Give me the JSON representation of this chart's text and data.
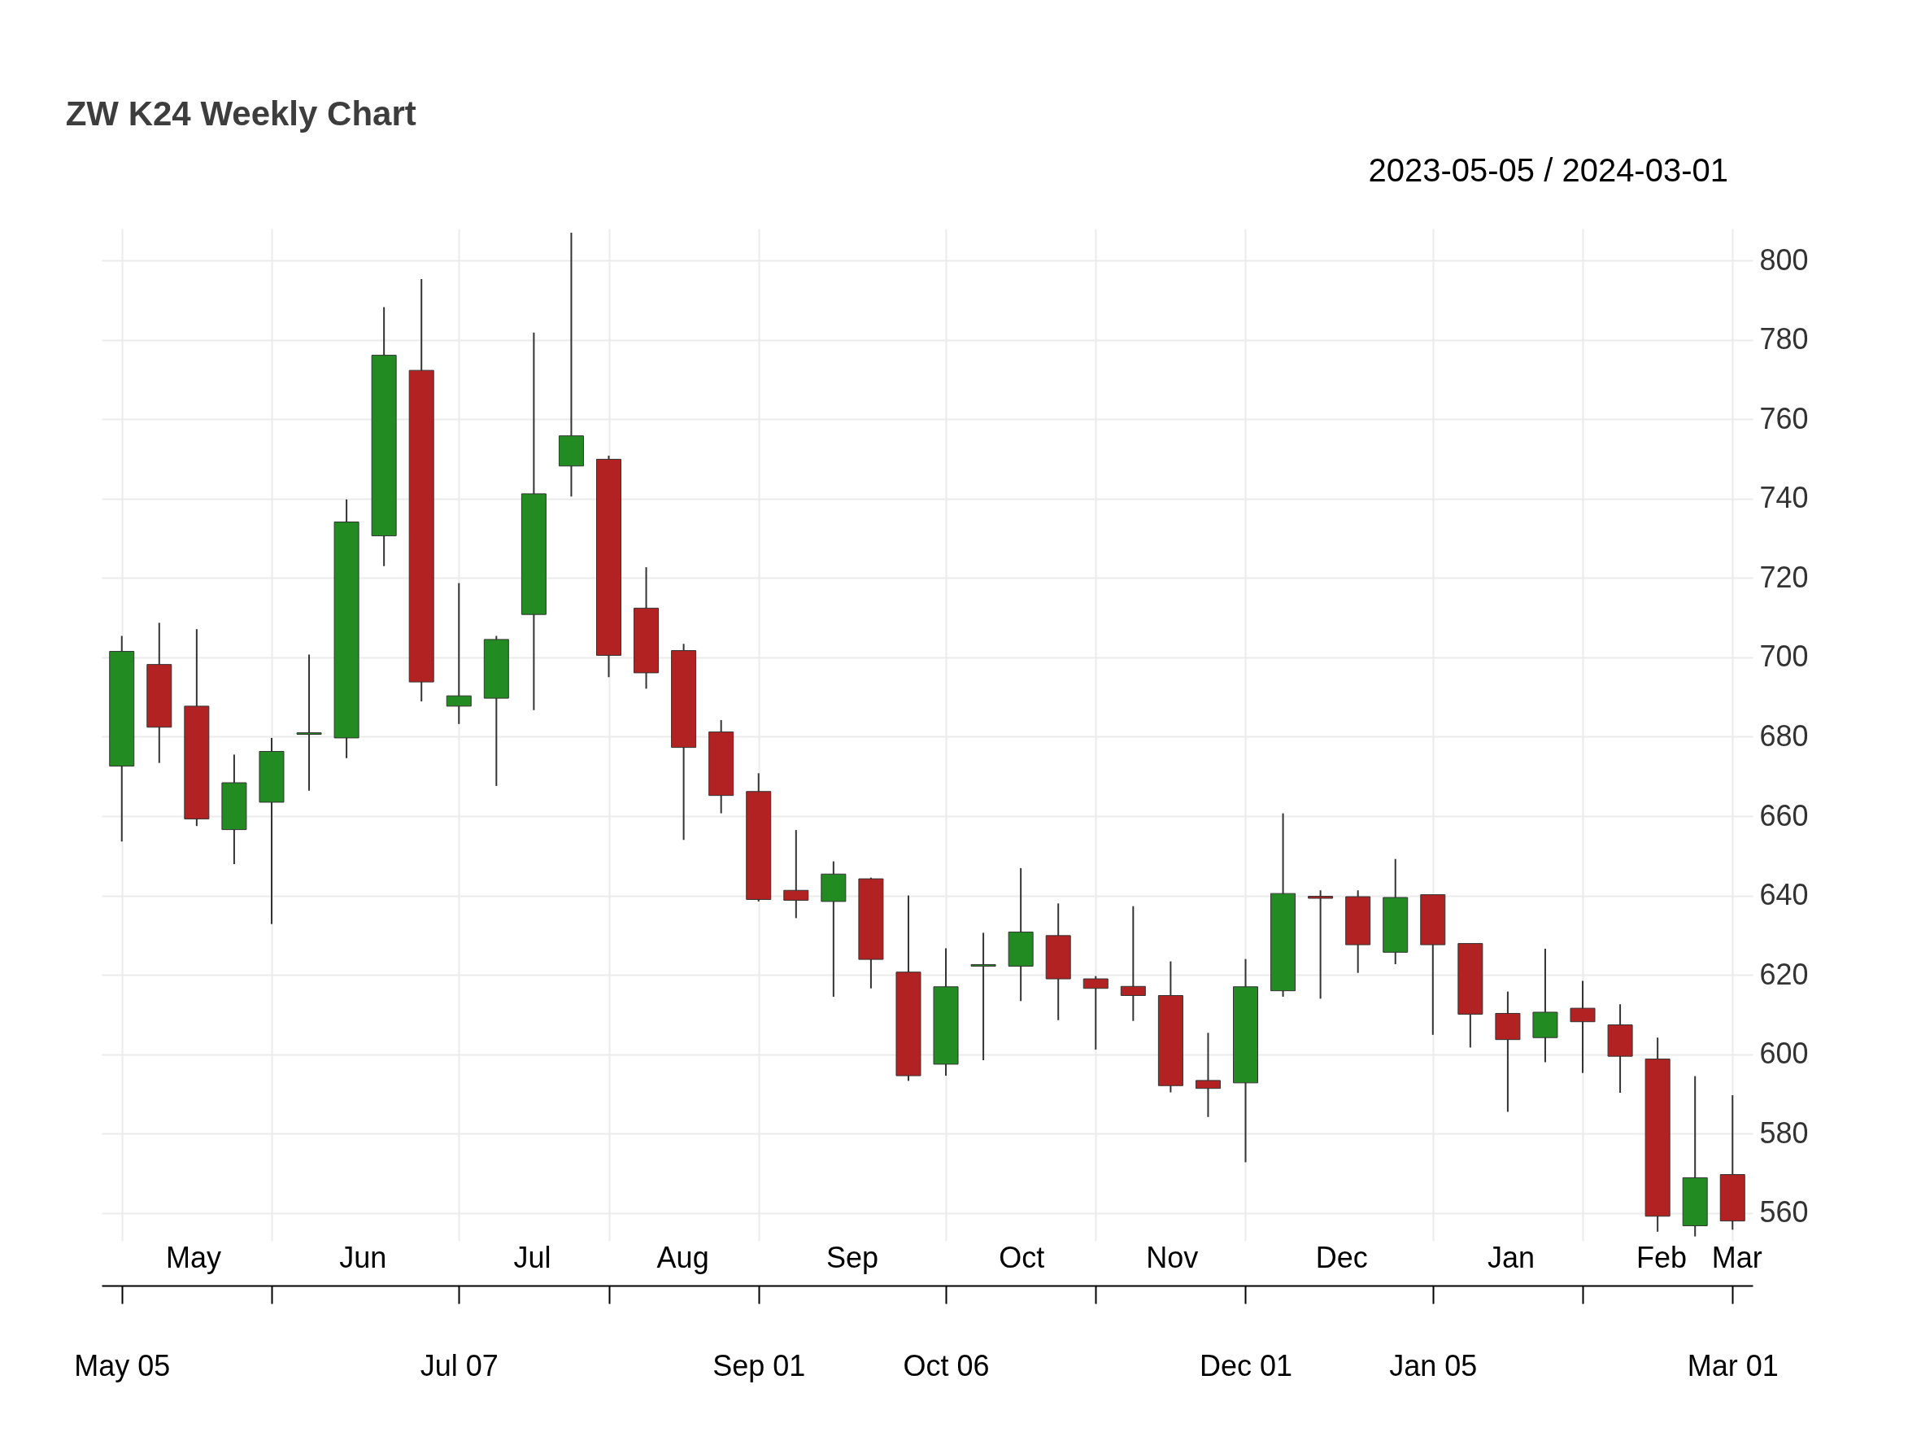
{
  "chart_data": {
    "type": "candlestick",
    "title": "ZW K24 Weekly Chart",
    "subtitle": "2023-05-05 / 2024-03-01",
    "x": [
      "2023-05-05",
      "2023-05-12",
      "2023-05-19",
      "2023-05-26",
      "2023-06-02",
      "2023-06-09",
      "2023-06-16",
      "2023-06-23",
      "2023-06-30",
      "2023-07-07",
      "2023-07-14",
      "2023-07-21",
      "2023-07-28",
      "2023-08-04",
      "2023-08-11",
      "2023-08-18",
      "2023-08-25",
      "2023-09-01",
      "2023-09-08",
      "2023-09-15",
      "2023-09-22",
      "2023-09-29",
      "2023-10-06",
      "2023-10-13",
      "2023-10-20",
      "2023-10-27",
      "2023-11-03",
      "2023-11-10",
      "2023-11-17",
      "2023-11-24",
      "2023-12-01",
      "2023-12-08",
      "2023-12-15",
      "2023-12-22",
      "2023-12-29",
      "2024-01-05",
      "2024-01-12",
      "2024-01-19",
      "2024-01-26",
      "2024-02-02",
      "2024-02-09",
      "2024-02-16",
      "2024-02-23",
      "2024-03-01"
    ],
    "ohlc": [
      [
        672.6,
        705.4,
        653.6,
        701.5
      ],
      [
        698.2,
        708.7,
        673.4,
        682.4
      ],
      [
        687.7,
        707.1,
        657.5,
        659.3
      ],
      [
        656.6,
        675.5,
        647.9,
        668.4
      ],
      [
        663.5,
        679.7,
        632.8,
        676.3
      ],
      [
        680.6,
        700.7,
        666.4,
        681.0
      ],
      [
        679.7,
        739.8,
        674.6,
        734.1
      ],
      [
        730.6,
        788.2,
        723.0,
        776.1
      ],
      [
        772.3,
        795.3,
        688.9,
        693.8
      ],
      [
        687.7,
        718.7,
        683.2,
        690.3
      ],
      [
        689.7,
        705.4,
        667.6,
        704.5
      ],
      [
        710.8,
        781.8,
        686.7,
        741.2
      ],
      [
        748.2,
        807.0,
        740.5,
        755.8
      ],
      [
        749.9,
        750.8,
        695.0,
        700.5
      ],
      [
        712.4,
        722.7,
        692.1,
        696.1
      ],
      [
        701.7,
        703.4,
        654.0,
        677.3
      ],
      [
        681.2,
        684.2,
        660.7,
        665.2
      ],
      [
        666.2,
        670.8,
        638.5,
        639.0
      ],
      [
        641.3,
        656.5,
        634.3,
        638.8
      ],
      [
        638.5,
        648.6,
        614.5,
        645.4
      ],
      [
        644.2,
        644.5,
        616.6,
        623.9
      ],
      [
        620.7,
        640.0,
        593.3,
        594.6
      ],
      [
        597.5,
        626.7,
        594.6,
        617.0
      ],
      [
        622.2,
        630.6,
        598.5,
        622.6
      ],
      [
        622.2,
        646.9,
        613.4,
        630.8
      ],
      [
        629.9,
        638.0,
        608.6,
        619.0
      ],
      [
        619.0,
        619.7,
        601.2,
        616.6
      ],
      [
        617.1,
        637.3,
        608.4,
        614.8
      ],
      [
        614.8,
        623.4,
        590.4,
        592.1
      ],
      [
        593.4,
        605.4,
        584.2,
        591.4
      ],
      [
        592.8,
        624.0,
        572.8,
        617.0
      ],
      [
        616.0,
        660.7,
        614.5,
        640.5
      ],
      [
        639.8,
        641.3,
        614.0,
        639.3
      ],
      [
        639.7,
        641.3,
        620.5,
        627.6
      ],
      [
        625.7,
        649.2,
        622.7,
        639.5
      ],
      [
        640.2,
        640.2,
        604.9,
        627.6
      ],
      [
        627.9,
        627.9,
        601.7,
        610.1
      ],
      [
        610.3,
        615.8,
        585.5,
        603.7
      ],
      [
        604.2,
        626.6,
        598.0,
        610.6
      ],
      [
        611.6,
        618.5,
        595.3,
        608.2
      ],
      [
        607.4,
        612.6,
        590.3,
        599.5
      ],
      [
        598.8,
        604.2,
        555.3,
        559.2
      ],
      [
        556.8,
        594.5,
        554.1,
        568.9
      ],
      [
        569.7,
        589.7,
        555.8,
        558.0
      ]
    ],
    "colors": [
      "#228b22",
      "#b22222",
      "#b22222",
      "#228b22",
      "#228b22",
      "#228b22",
      "#228b22",
      "#228b22",
      "#b22222",
      "#228b22",
      "#228b22",
      "#228b22",
      "#228b22",
      "#b22222",
      "#b22222",
      "#b22222",
      "#b22222",
      "#b22222",
      "#b22222",
      "#228b22",
      "#b22222",
      "#b22222",
      "#228b22",
      "#228b22",
      "#228b22",
      "#b22222",
      "#b22222",
      "#b22222",
      "#b22222",
      "#b22222",
      "#228b22",
      "#228b22",
      "#b22222",
      "#b22222",
      "#228b22",
      "#b22222",
      "#b22222",
      "#b22222",
      "#228b22",
      "#b22222",
      "#b22222",
      "#b22222",
      "#228b22",
      "#b22222"
    ],
    "xlim": [
      "2023-05-02",
      "2024-03-04"
    ],
    "xticks": [
      {
        "value": "2023-05-05",
        "label": "May 05"
      },
      {
        "value": "2023-06-02",
        "label": null
      },
      {
        "value": "2023-07-07",
        "label": "Jul 07"
      },
      {
        "value": "2023-08-04",
        "label": null
      },
      {
        "value": "2023-09-01",
        "label": "Sep 01"
      },
      {
        "value": "2023-10-06",
        "label": "Oct 06"
      },
      {
        "value": "2023-11-03",
        "label": null
      },
      {
        "value": "2023-12-01",
        "label": "Dec 01"
      },
      {
        "value": "2024-01-05",
        "label": "Jan 05"
      },
      {
        "value": "2024-02-02",
        "label": null
      },
      {
        "value": "2024-03-01",
        "label": "Mar 01"
      }
    ],
    "x2lim": [
      "2023-05-02",
      "2024-03-04"
    ],
    "x2ticks": [
      {
        "value": "2023-05-19",
        "label": "May"
      },
      {
        "value": "2023-06-19T12:00",
        "label": "Jun"
      },
      {
        "value": "2023-07-21",
        "label": "Jul"
      },
      {
        "value": "2023-08-18",
        "label": "Aug"
      },
      {
        "value": "2023-09-18T12:00",
        "label": "Sep"
      },
      {
        "value": "2023-10-20",
        "label": "Oct"
      },
      {
        "value": "2023-11-17",
        "label": "Nov"
      },
      {
        "value": "2023-12-18T12:00",
        "label": "Dec"
      },
      {
        "value": "2024-01-19",
        "label": "Jan"
      },
      {
        "value": "2024-02-16",
        "label": "Feb"
      },
      {
        "value": "2024-03-01",
        "label": "Mar"
      }
    ],
    "ylim": [
      553,
      808
    ],
    "yticks": [
      560,
      580,
      600,
      620,
      640,
      660,
      680,
      700,
      720,
      740,
      760,
      780,
      800
    ],
    "grid": true
  }
}
